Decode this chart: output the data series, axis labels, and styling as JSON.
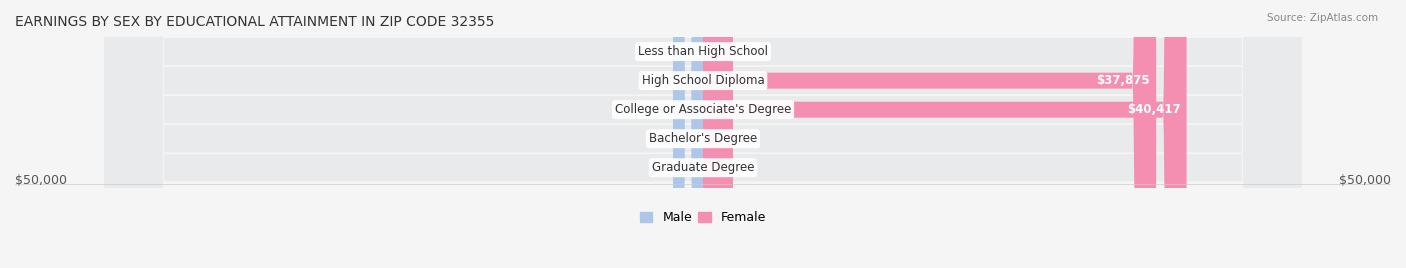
{
  "title": "EARNINGS BY SEX BY EDUCATIONAL ATTAINMENT IN ZIP CODE 32355",
  "source": "Source: ZipAtlas.com",
  "categories": [
    "Less than High School",
    "High School Diploma",
    "College or Associate's Degree",
    "Bachelor's Degree",
    "Graduate Degree"
  ],
  "male_values": [
    0,
    0,
    0,
    0,
    0
  ],
  "female_values": [
    0,
    37875,
    40417,
    0,
    0
  ],
  "male_color": "#aec6e8",
  "female_color": "#f48fb1",
  "male_label": "Male",
  "female_label": "Female",
  "max_value": 50000,
  "background_color": "#f5f5f5",
  "bar_background": "#e8e8e8",
  "left_label": "$50,000",
  "right_label": "$50,000",
  "title_fontsize": 10,
  "axis_fontsize": 9,
  "label_fontsize": 8.5
}
